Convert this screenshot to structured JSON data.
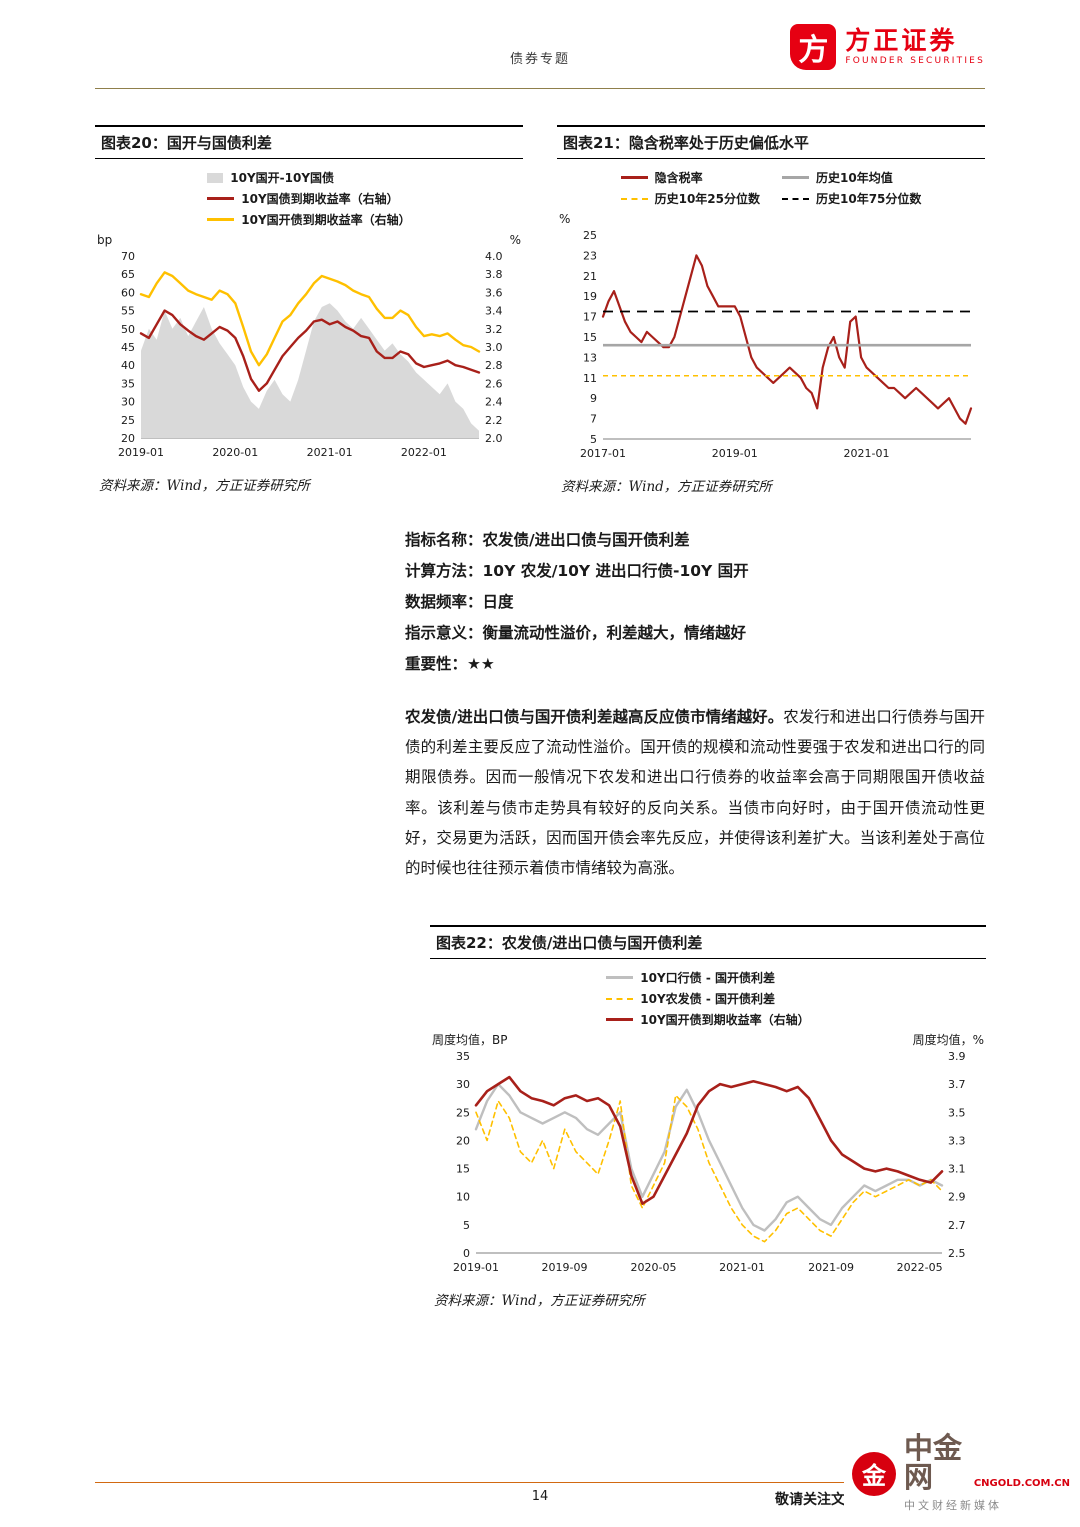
{
  "header": {
    "section_title": "债券专题",
    "brand_name": "方正证券",
    "brand_sub": "FOUNDER SECURITIES",
    "brand_mark": "方"
  },
  "figures": {
    "fig20": {
      "title": "图表20：国开与国债利差",
      "source": "资料来源：Wind，方正证券研究所"
    },
    "fig21": {
      "title": "图表21：隐含税率处于历史偏低水平",
      "source": "资料来源：Wind，方正证券研究所"
    },
    "fig22": {
      "title": "图表22：农发债/进出口债与国开债利差",
      "source": "资料来源：Wind，方正证券研究所"
    }
  },
  "indicator": {
    "rows": [
      {
        "label": "指标名称：",
        "value": "农发债/进出口债与国开债利差"
      },
      {
        "label": "计算方法：",
        "value": "10Y 农发/10Y 进出口行债-10Y 国开"
      },
      {
        "label": "数据频率：",
        "value": "日度"
      },
      {
        "label": "指示意义：",
        "value": "衡量流动性溢价，利差越大，情绪越好"
      },
      {
        "label": "重要性：",
        "value": "★★"
      }
    ]
  },
  "paragraph": {
    "lead": "农发债/进出口债与国开债利差越高反应债市情绪越好。",
    "body": "农发行和进出口行债券与国开债的利差主要反应了流动性溢价。国开债的规模和流动性要强于农发和进出口行的同期限债券。因而一般情况下农发和进出口行债券的收益率会高于同期限国开债收益率。该利差与债市走势具有较好的反向关系。当债市向好时，由于国开债流动性更好，交易更为活跃，因而国开债会率先反应，并使得该利差扩大。当该利差处于高位的时候也往往预示着债市情绪较为高涨。"
  },
  "footer": {
    "page_number": "14",
    "disclaimer": "敬请关注文后特别声明与免责条款",
    "watermark": {
      "logo_glyph": "金",
      "name": "中金网",
      "domain": "CNGOLD.COM.CN",
      "tagline": "中文财经新媒体"
    }
  },
  "chart_data": [
    {
      "id": "fig20",
      "type": "line",
      "title": "图表20：国开与国债利差",
      "left_axis": {
        "label": "bp",
        "min": 20,
        "max": 70,
        "ticks": [
          70,
          65,
          60,
          55,
          50,
          45,
          40,
          35,
          30,
          25,
          20
        ]
      },
      "right_axis": {
        "label": "%",
        "min": 2.0,
        "max": 4.0,
        "ticks": [
          "4.0",
          "3.8",
          "3.6",
          "3.4",
          "3.2",
          "3.0",
          "2.8",
          "2.6",
          "2.4",
          "2.2",
          "2.0"
        ]
      },
      "x_ticks": [
        {
          "f": 0.0,
          "label": "2019-01"
        },
        {
          "f": 0.279,
          "label": "2020-01"
        },
        {
          "f": 0.558,
          "label": "2021-01"
        },
        {
          "f": 0.837,
          "label": "2022-01"
        }
      ],
      "legend_cols": 1,
      "series": [
        {
          "name": "10Y国开-10Y国债",
          "kind": "area",
          "axis": "left",
          "color": "#d9d9d9",
          "values": [
            44,
            50,
            47,
            55,
            50,
            53,
            48,
            52,
            56,
            50,
            46,
            43,
            40,
            34,
            30,
            28,
            33,
            36,
            32,
            30,
            36,
            44,
            52,
            56,
            57,
            55,
            52,
            50,
            53,
            50,
            47,
            44,
            46,
            43,
            41,
            38,
            36,
            34,
            32,
            35,
            30,
            28,
            24,
            22
          ]
        },
        {
          "name": "10Y国债到期收益率（右轴）",
          "kind": "line",
          "axis": "right",
          "color": "#a8201a",
          "width": 2.4,
          "values": [
            3.15,
            3.1,
            3.25,
            3.4,
            3.35,
            3.25,
            3.18,
            3.12,
            3.08,
            3.15,
            3.22,
            3.18,
            3.1,
            2.9,
            2.65,
            2.52,
            2.6,
            2.75,
            2.9,
            3.0,
            3.1,
            3.18,
            3.28,
            3.3,
            3.25,
            3.28,
            3.22,
            3.18,
            3.12,
            3.1,
            2.95,
            2.88,
            2.88,
            2.95,
            2.92,
            2.82,
            2.78,
            2.8,
            2.82,
            2.85,
            2.8,
            2.78,
            2.75,
            2.72
          ]
        },
        {
          "name": "10Y国开债到期收益率（右轴）",
          "kind": "line",
          "axis": "right",
          "color": "#ffc000",
          "width": 2.4,
          "values": [
            3.58,
            3.55,
            3.7,
            3.82,
            3.78,
            3.7,
            3.62,
            3.58,
            3.55,
            3.52,
            3.62,
            3.58,
            3.48,
            3.22,
            2.95,
            2.8,
            2.92,
            3.1,
            3.28,
            3.35,
            3.48,
            3.58,
            3.7,
            3.78,
            3.75,
            3.72,
            3.68,
            3.62,
            3.58,
            3.55,
            3.42,
            3.32,
            3.32,
            3.4,
            3.35,
            3.22,
            3.12,
            3.14,
            3.12,
            3.15,
            3.08,
            3.02,
            3.0,
            2.95
          ]
        }
      ]
    },
    {
      "id": "fig21",
      "type": "line",
      "title": "图表21：隐含税率处于历史偏低水平",
      "left_axis": {
        "label": "%",
        "min": 5,
        "max": 25,
        "ticks": [
          25,
          23,
          21,
          19,
          17,
          15,
          13,
          11,
          9,
          7,
          5
        ]
      },
      "x_ticks": [
        {
          "f": 0.0,
          "label": "2017-01"
        },
        {
          "f": 0.358,
          "label": "2019-01"
        },
        {
          "f": 0.716,
          "label": "2021-01"
        }
      ],
      "legend_cols": 2,
      "series": [
        {
          "name": "隐含税率",
          "kind": "line",
          "axis": "left",
          "color": "#a8201a",
          "width": 2.2,
          "values": [
            17,
            18.5,
            19.5,
            18,
            16.5,
            15.5,
            15,
            14.5,
            15.5,
            15,
            14.5,
            14,
            14,
            15,
            17,
            19,
            21,
            23,
            22,
            20,
            19,
            18,
            18,
            18,
            18,
            17,
            15,
            13,
            12,
            11.5,
            11,
            10.5,
            11,
            11.5,
            12,
            11.5,
            11,
            10,
            9.5,
            8,
            12,
            14,
            15,
            13,
            12,
            16.5,
            17,
            13,
            12,
            11.5,
            11,
            10.5,
            10,
            10,
            9.5,
            9,
            9.5,
            10,
            9.5,
            9,
            8.5,
            8,
            8.5,
            9,
            8,
            7,
            6.5,
            8
          ]
        },
        {
          "name": "历史10年均值",
          "kind": "hline",
          "axis": "left",
          "color": "#a6a6a6",
          "width": 2.6,
          "value": 14.2
        },
        {
          "name": "历史10年25分位数",
          "kind": "hline",
          "axis": "left",
          "color": "#ffc000",
          "width": 1.6,
          "dash": "5,4",
          "value": 11.2
        },
        {
          "name": "历史10年75分位数",
          "kind": "hline",
          "axis": "left",
          "color": "#000000",
          "width": 1.8,
          "dash": "10,7",
          "value": 17.5
        }
      ]
    },
    {
      "id": "fig22",
      "type": "line",
      "title": "图表22：农发债/进出口债与国开债利差",
      "left_axis": {
        "label": "周度均值，BP",
        "min": 0,
        "max": 35,
        "ticks": [
          35,
          30,
          25,
          20,
          15,
          10,
          5,
          0
        ]
      },
      "right_axis": {
        "label": "周度均值，%",
        "min": 2.5,
        "max": 3.9,
        "ticks": [
          "3.9",
          "3.7",
          "3.5",
          "3.3",
          "3.1",
          "2.9",
          "2.7",
          "2.5"
        ]
      },
      "x_ticks": [
        {
          "f": 0.0,
          "label": "2019-01"
        },
        {
          "f": 0.19,
          "label": "2019-09"
        },
        {
          "f": 0.381,
          "label": "2020-05"
        },
        {
          "f": 0.571,
          "label": "2021-01"
        },
        {
          "f": 0.762,
          "label": "2021-09"
        },
        {
          "f": 0.952,
          "label": "2022-05"
        }
      ],
      "legend_cols": 1,
      "series": [
        {
          "name": "10Y口行债 - 国开债利差",
          "kind": "line",
          "axis": "left",
          "color": "#bfbfbf",
          "width": 2.4,
          "values": [
            22,
            27,
            30,
            28,
            25,
            24,
            23,
            24,
            25,
            24,
            22,
            21,
            23,
            25,
            15,
            10,
            14,
            18,
            26,
            29,
            25,
            20,
            16,
            12,
            8,
            5,
            4,
            6,
            9,
            10,
            8,
            6,
            5,
            8,
            10,
            12,
            11,
            12,
            13,
            13,
            12,
            13,
            12
          ]
        },
        {
          "name": "10Y农发债 - 国开债利差",
          "kind": "line",
          "axis": "left",
          "color": "#ffc000",
          "width": 1.6,
          "dash": "5,4",
          "values": [
            25,
            20,
            27,
            24,
            18,
            16,
            20,
            15,
            22,
            18,
            16,
            14,
            20,
            27,
            12,
            8,
            12,
            16,
            28,
            26,
            22,
            16,
            12,
            8,
            5,
            3,
            2,
            4,
            7,
            8,
            6,
            4,
            3,
            6,
            9,
            11,
            10,
            11,
            12,
            13,
            12,
            13,
            11
          ]
        },
        {
          "name": "10Y国开债到期收益率（右轴）",
          "kind": "line",
          "axis": "right",
          "color": "#a8201a",
          "width": 2.6,
          "values": [
            3.55,
            3.65,
            3.7,
            3.75,
            3.65,
            3.6,
            3.58,
            3.55,
            3.6,
            3.62,
            3.58,
            3.6,
            3.55,
            3.4,
            3.05,
            2.85,
            2.9,
            3.05,
            3.2,
            3.35,
            3.55,
            3.65,
            3.7,
            3.68,
            3.7,
            3.72,
            3.7,
            3.68,
            3.65,
            3.68,
            3.6,
            3.45,
            3.3,
            3.2,
            3.15,
            3.1,
            3.08,
            3.1,
            3.08,
            3.05,
            3.02,
            3.0,
            3.08
          ]
        }
      ]
    }
  ]
}
